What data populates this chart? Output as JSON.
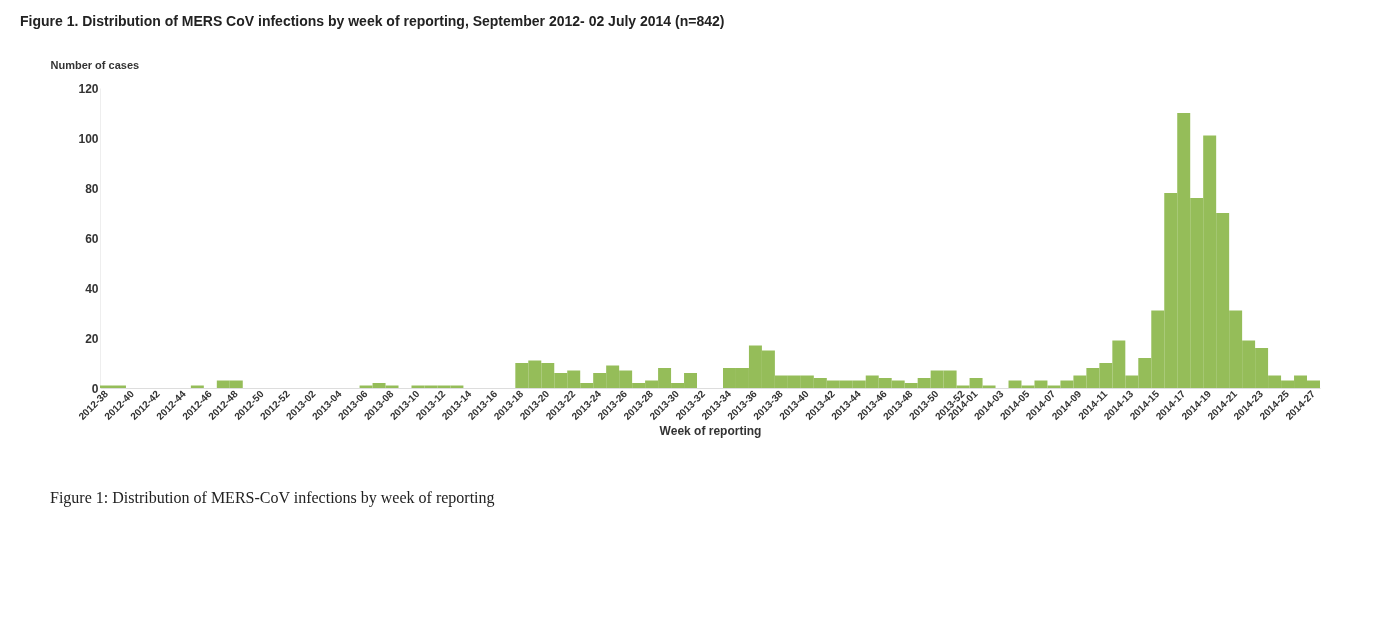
{
  "chart_data": {
    "type": "bar",
    "title": "Figure 1. Distribution of MERS CoV infections by week of reporting, September 2012- 02 July 2014 (n=842)",
    "ylabel": "Number of cases",
    "xlabel": "Week of reporting",
    "annotations": [
      "Figure 1: Distribution of MERS-CoV infections by week of reporting"
    ],
    "categories": [
      "2012-38",
      null,
      "2012-40",
      null,
      "2012-42",
      null,
      "2012-44",
      null,
      "2012-46",
      null,
      "2012-48",
      null,
      "2012-50",
      null,
      "2012-52",
      null,
      "2013-02",
      null,
      "2013-04",
      null,
      "2013-06",
      null,
      "2013-08",
      null,
      "2013-10",
      null,
      "2013-12",
      null,
      "2013-14",
      null,
      "2013-16",
      null,
      "2013-18",
      null,
      "2013-20",
      null,
      "2013-22",
      null,
      "2013-24",
      null,
      "2013-26",
      null,
      "2013-28",
      null,
      "2013-30",
      null,
      "2013-32",
      null,
      "2013-34",
      null,
      "2013-36",
      null,
      "2013-38",
      null,
      "2013-40",
      null,
      "2013-42",
      null,
      "2013-44",
      null,
      "2013-46",
      null,
      "2013-48",
      null,
      "2013-50",
      null,
      "2013-52",
      "2014-01",
      null,
      "2014-03",
      null,
      "2014-05",
      null,
      "2014-07",
      null,
      "2014-09",
      null,
      "2014-11",
      null,
      "2014-13",
      null,
      "2014-15",
      null,
      "2014-17",
      null,
      "2014-19",
      null,
      "2014-21",
      null,
      "2014-23",
      null,
      "2014-25",
      null,
      "2014-27"
    ],
    "values": [
      1,
      1,
      0,
      0,
      0,
      0,
      0,
      1,
      0,
      3,
      3,
      0,
      0,
      0,
      0,
      0,
      0,
      0,
      0,
      0,
      1,
      2,
      1,
      0,
      1,
      1,
      1,
      1,
      0,
      0,
      0,
      0,
      10,
      11,
      10,
      6,
      7,
      2,
      6,
      9,
      7,
      2,
      3,
      8,
      2,
      6,
      0,
      0,
      8,
      8,
      17,
      15,
      5,
      5,
      5,
      4,
      3,
      3,
      3,
      5,
      4,
      3,
      2,
      4,
      7,
      7,
      1,
      4,
      1,
      0,
      3,
      1,
      3,
      1,
      3,
      5,
      8,
      10,
      19,
      5,
      12,
      31,
      78,
      110,
      76,
      101,
      70,
      31,
      19,
      16,
      5,
      3,
      5,
      3
    ],
    "color": "#95bd59",
    "ylim": [
      0,
      120
    ],
    "yticks": [
      0,
      20,
      40,
      60,
      80,
      100,
      120
    ],
    "grid": false
  }
}
